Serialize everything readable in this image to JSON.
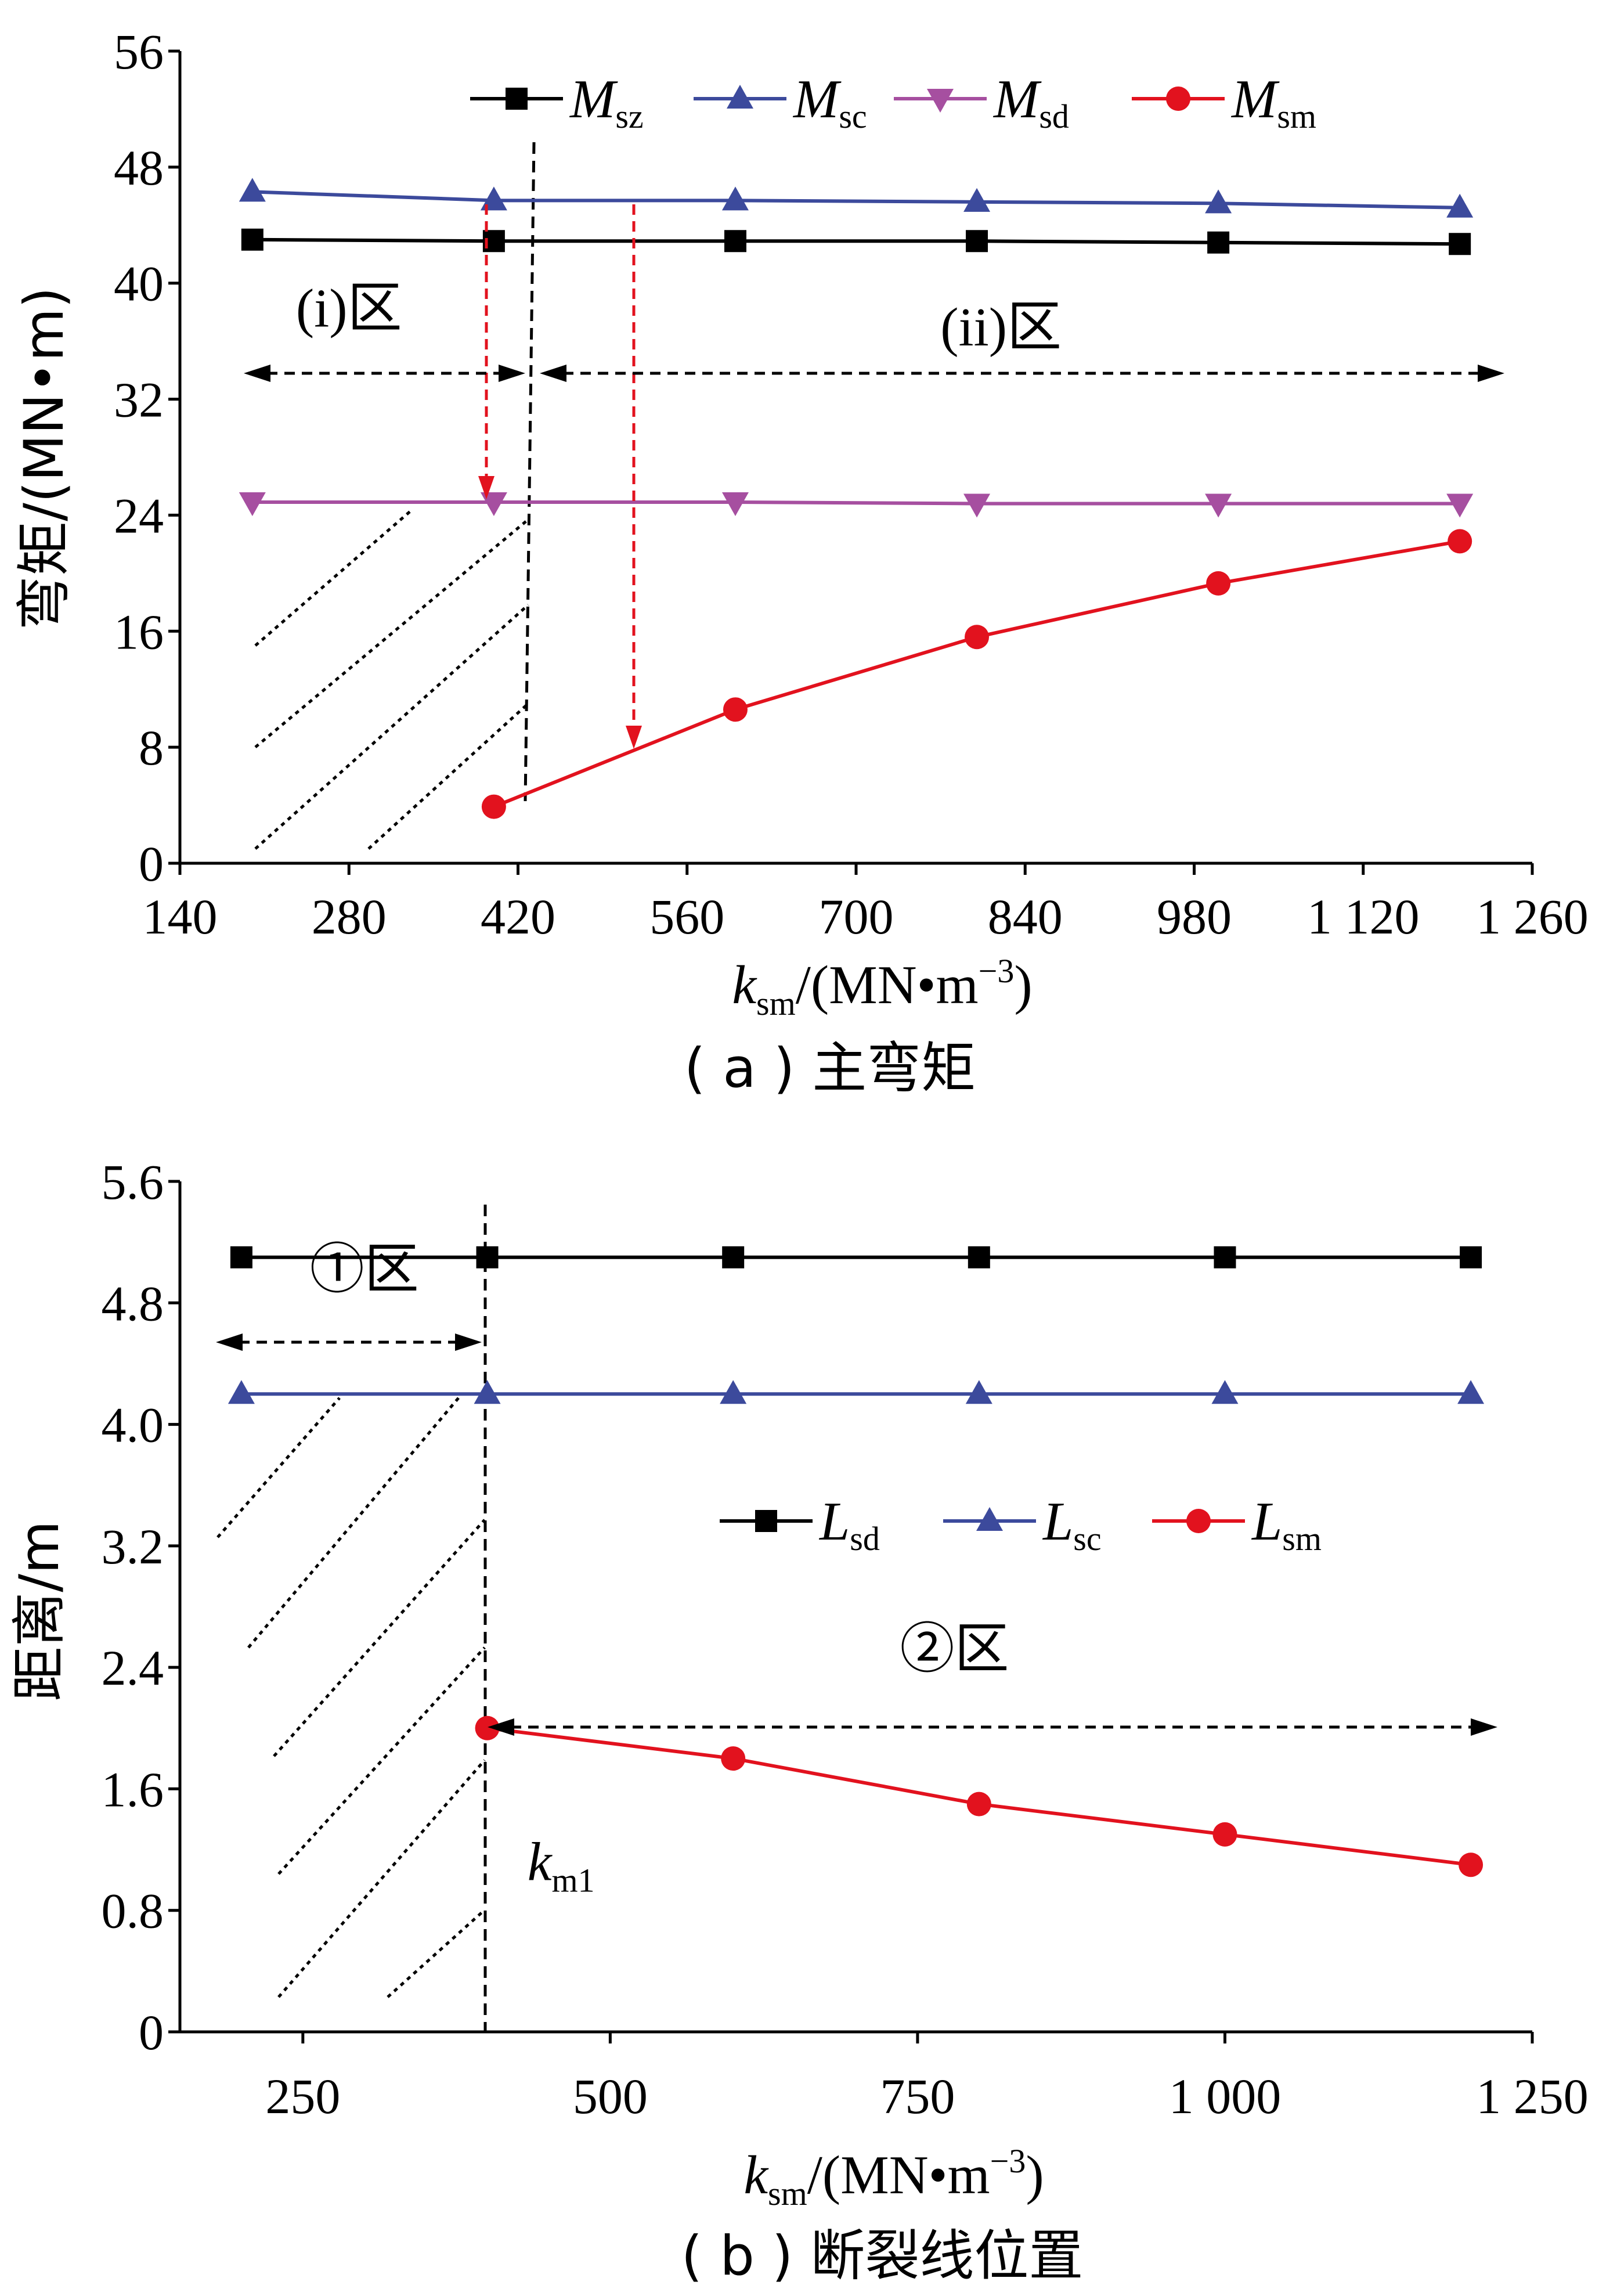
{
  "chart_data": [
    {
      "type": "line",
      "caption": "( a ) 主弯矩",
      "ylabel": "弯矩/(MN•m)",
      "xlabel_main": "k",
      "xlabel_sub": "sm",
      "xlabel_unit": "/(MN•m",
      "xlabel_exp": "−3",
      "xlabel_close": ")",
      "xlim": [
        140,
        1260
      ],
      "ylim": [
        0,
        56
      ],
      "xticks": [
        140,
        280,
        420,
        560,
        700,
        840,
        980,
        1120,
        1260
      ],
      "xtick_labels": [
        "140",
        "280",
        "420",
        "560",
        "700",
        "840",
        "980",
        "1 120",
        "1 260"
      ],
      "yticks": [
        0,
        8,
        16,
        24,
        32,
        40,
        48,
        56
      ],
      "ytick_labels": [
        "0",
        "8",
        "16",
        "24",
        "32",
        "40",
        "48",
        "56"
      ],
      "legend_position": "top",
      "series": [
        {
          "name": "M",
          "sub": "sz",
          "color": "#000000",
          "marker": "square",
          "x": [
            200,
            400,
            600,
            800,
            1000,
            1200
          ],
          "y": [
            43.0,
            42.9,
            42.9,
            42.9,
            42.8,
            42.7
          ]
        },
        {
          "name": "M",
          "sub": "sc",
          "color": "#3c4a9c",
          "marker": "triangle-up",
          "x": [
            200,
            400,
            600,
            800,
            1000,
            1200
          ],
          "y": [
            46.3,
            45.7,
            45.7,
            45.6,
            45.5,
            45.2
          ]
        },
        {
          "name": "M",
          "sub": "sd",
          "color": "#a64fa0",
          "marker": "triangle-down",
          "x": [
            200,
            400,
            600,
            800,
            1000,
            1200
          ],
          "y": [
            24.9,
            24.9,
            24.9,
            24.8,
            24.8,
            24.8
          ]
        },
        {
          "name": "M",
          "sub": "sm",
          "color": "#e2121e",
          "marker": "circle",
          "x": [
            400,
            600,
            800,
            1000,
            1200
          ],
          "y": [
            3.9,
            10.6,
            15.6,
            19.3,
            22.2
          ]
        }
      ],
      "annotations": [
        {
          "text": "(i)区",
          "x": 280,
          "y": 37.0
        },
        {
          "text": "(ii)区",
          "x": 820,
          "y": 35.7
        }
      ]
    },
    {
      "type": "line",
      "caption": "( b ) 断裂线位置",
      "ylabel": "距离/m",
      "xlabel_main": "k",
      "xlabel_sub": "sm",
      "xlabel_unit": "/(MN•m",
      "xlabel_exp": "−3",
      "xlabel_close": ")",
      "xlim": [
        150,
        1250
      ],
      "ylim": [
        0,
        5.6
      ],
      "xticks": [
        250,
        500,
        750,
        1000,
        1250
      ],
      "xtick_labels": [
        "250",
        "500",
        "750",
        "1 000",
        "1 250"
      ],
      "yticks": [
        0,
        0.8,
        1.6,
        2.4,
        3.2,
        4.0,
        4.8,
        5.6
      ],
      "ytick_labels": [
        "0",
        "0.8",
        "1.6",
        "2.4",
        "3.2",
        "4.0",
        "4.8",
        "5.6"
      ],
      "legend_position": "center-right",
      "series": [
        {
          "name": "L",
          "sub": "sd",
          "color": "#000000",
          "marker": "square",
          "x": [
            200,
            400,
            600,
            800,
            1000,
            1200
          ],
          "y": [
            5.1,
            5.1,
            5.1,
            5.1,
            5.1,
            5.1
          ]
        },
        {
          "name": "L",
          "sub": "sc",
          "color": "#3c4a9c",
          "marker": "triangle-up",
          "x": [
            200,
            400,
            600,
            800,
            1000,
            1200
          ],
          "y": [
            4.2,
            4.2,
            4.2,
            4.2,
            4.2,
            4.2
          ]
        },
        {
          "name": "L",
          "sub": "sm",
          "color": "#e2121e",
          "marker": "circle",
          "x": [
            400,
            600,
            800,
            1000,
            1200
          ],
          "y": [
            2.0,
            1.8,
            1.5,
            1.3,
            1.1
          ]
        }
      ],
      "annotations": [
        {
          "text": "①区",
          "x": 300,
          "y": 4.9
        },
        {
          "text": "②区",
          "x": 780,
          "y": 2.4
        },
        {
          "text": "k",
          "sub": "m1",
          "x": 460,
          "y": 1.0
        }
      ]
    }
  ]
}
